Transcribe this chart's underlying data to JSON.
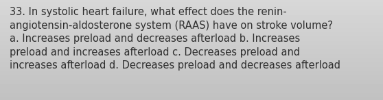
{
  "text_line1": "33. In systolic heart failure, what effect does the renin-",
  "text_line2": "angiotensin-aldosterone system (RAAS) have on stroke volume?",
  "text_line3": "a. Increases preload and decreases afterload b. Increases",
  "text_line4": "preload and increases afterload c. Decreases preload and",
  "text_line5": "increases afterload d. Decreases preload and decreases afterload",
  "text_color": "#2e2e2e",
  "font_size": 10.5,
  "bg_color_top_left": "#d6d6d6",
  "bg_color_bottom_right": "#b8b8b8",
  "fig_width": 5.58,
  "fig_height": 1.46,
  "dpi": 100
}
